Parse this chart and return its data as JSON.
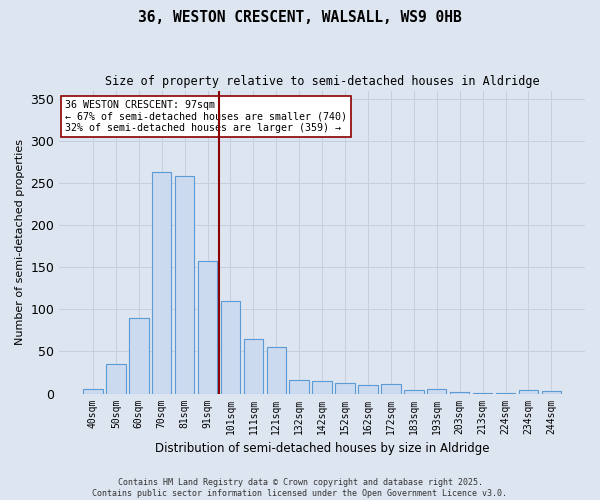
{
  "title1": "36, WESTON CRESCENT, WALSALL, WS9 0HB",
  "title2": "Size of property relative to semi-detached houses in Aldridge",
  "xlabel": "Distribution of semi-detached houses by size in Aldridge",
  "ylabel": "Number of semi-detached properties",
  "categories": [
    "40sqm",
    "50sqm",
    "60sqm",
    "70sqm",
    "81sqm",
    "91sqm",
    "101sqm",
    "111sqm",
    "121sqm",
    "132sqm",
    "142sqm",
    "152sqm",
    "162sqm",
    "172sqm",
    "183sqm",
    "193sqm",
    "203sqm",
    "213sqm",
    "224sqm",
    "234sqm",
    "244sqm"
  ],
  "values": [
    6,
    35,
    90,
    263,
    258,
    157,
    110,
    65,
    55,
    16,
    15,
    13,
    10,
    11,
    4,
    5,
    2,
    1,
    1,
    4,
    3
  ],
  "bar_color": "#ccdaf0",
  "bar_edge_color": "#5b9bd5",
  "grid_color": "#c5cfe0",
  "background_color": "#dde5f0",
  "vline_x_index": 6,
  "vline_color": "#8b0000",
  "annotation_line1": "36 WESTON CRESCENT: 97sqm",
  "annotation_line2": "← 67% of semi-detached houses are smaller (740)",
  "annotation_line3": "32% of semi-detached houses are larger (359) →",
  "annotation_box_color": "white",
  "annotation_box_edge": "#8b0000",
  "ylim": [
    0,
    360
  ],
  "yticks": [
    0,
    50,
    100,
    150,
    200,
    250,
    300,
    350
  ],
  "footnote1": "Contains HM Land Registry data © Crown copyright and database right 2025.",
  "footnote2": "Contains public sector information licensed under the Open Government Licence v3.0."
}
